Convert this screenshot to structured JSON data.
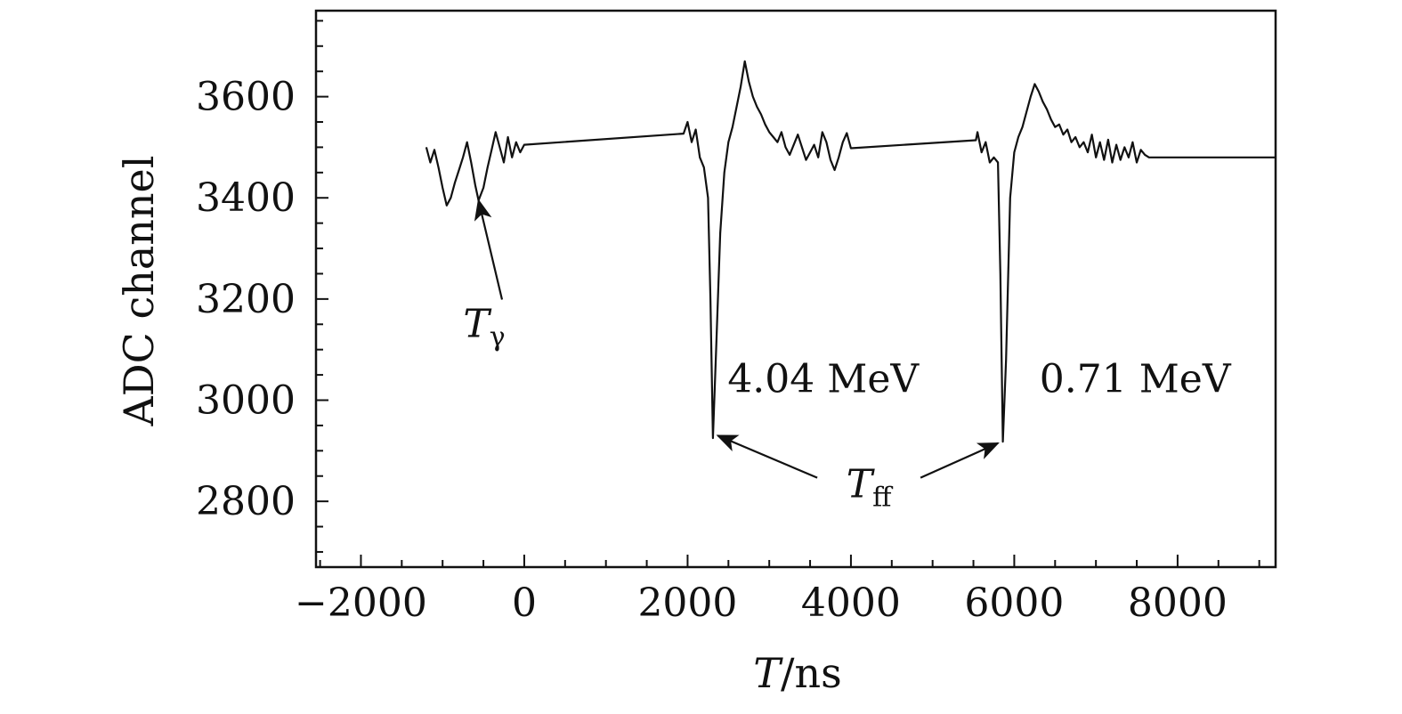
{
  "chart_data": {
    "type": "line",
    "xlabel_var": "T",
    "xlabel_unit": "/ns",
    "ylabel": "ADC channel",
    "xlim": [
      -2550,
      9200
    ],
    "ylim": [
      2670,
      3770
    ],
    "x_ticks": [
      -2000,
      0,
      2000,
      4000,
      6000,
      8000
    ],
    "x_tick_labels": [
      "−2000",
      "0",
      "2000",
      "4000",
      "6000",
      "8000"
    ],
    "x_minor_step": 500,
    "y_ticks": [
      2800,
      3000,
      3200,
      3400,
      3600
    ],
    "y_tick_labels": [
      "2800",
      "3000",
      "3200",
      "3400",
      "3600"
    ],
    "y_minor_step": 50,
    "series": [
      {
        "points": [
          [
            -1200,
            3500
          ],
          [
            -1150,
            3470
          ],
          [
            -1100,
            3495
          ],
          [
            -1050,
            3460
          ],
          [
            -1000,
            3420
          ],
          [
            -950,
            3385
          ],
          [
            -900,
            3400
          ],
          [
            -850,
            3430
          ],
          [
            -800,
            3455
          ],
          [
            -750,
            3480
          ],
          [
            -700,
            3510
          ],
          [
            -650,
            3470
          ],
          [
            -600,
            3425
          ],
          [
            -560,
            3395
          ],
          [
            -500,
            3420
          ],
          [
            -450,
            3460
          ],
          [
            -400,
            3495
          ],
          [
            -350,
            3530
          ],
          [
            -300,
            3500
          ],
          [
            -250,
            3470
          ],
          [
            -200,
            3520
          ],
          [
            -150,
            3480
          ],
          [
            -100,
            3510
          ],
          [
            -50,
            3490
          ],
          [
            0,
            3505
          ],
          [
            1950,
            3527
          ],
          [
            2000,
            3550
          ],
          [
            2050,
            3510
          ],
          [
            2100,
            3535
          ],
          [
            2150,
            3480
          ],
          [
            2200,
            3460
          ],
          [
            2250,
            3400
          ],
          [
            2280,
            3200
          ],
          [
            2310,
            2925
          ],
          [
            2350,
            3100
          ],
          [
            2400,
            3330
          ],
          [
            2450,
            3450
          ],
          [
            2500,
            3510
          ],
          [
            2550,
            3540
          ],
          [
            2600,
            3580
          ],
          [
            2650,
            3620
          ],
          [
            2700,
            3670
          ],
          [
            2750,
            3630
          ],
          [
            2800,
            3600
          ],
          [
            2850,
            3580
          ],
          [
            2900,
            3565
          ],
          [
            2950,
            3545
          ],
          [
            3000,
            3530
          ],
          [
            3050,
            3520
          ],
          [
            3100,
            3510
          ],
          [
            3150,
            3530
          ],
          [
            3200,
            3500
          ],
          [
            3250,
            3485
          ],
          [
            3300,
            3505
          ],
          [
            3350,
            3525
          ],
          [
            3400,
            3500
          ],
          [
            3450,
            3475
          ],
          [
            3500,
            3490
          ],
          [
            3550,
            3505
          ],
          [
            3600,
            3480
          ],
          [
            3650,
            3530
          ],
          [
            3700,
            3510
          ],
          [
            3750,
            3475
          ],
          [
            3800,
            3455
          ],
          [
            3850,
            3480
          ],
          [
            3900,
            3510
          ],
          [
            3950,
            3528
          ],
          [
            4000,
            3498
          ],
          [
            5530,
            3514
          ],
          [
            5550,
            3530
          ],
          [
            5600,
            3490
          ],
          [
            5650,
            3510
          ],
          [
            5700,
            3470
          ],
          [
            5750,
            3480
          ],
          [
            5800,
            3470
          ],
          [
            5830,
            3250
          ],
          [
            5860,
            2918
          ],
          [
            5900,
            3080
          ],
          [
            5950,
            3400
          ],
          [
            6000,
            3490
          ],
          [
            6050,
            3520
          ],
          [
            6100,
            3540
          ],
          [
            6150,
            3570
          ],
          [
            6200,
            3600
          ],
          [
            6250,
            3625
          ],
          [
            6300,
            3610
          ],
          [
            6350,
            3590
          ],
          [
            6400,
            3575
          ],
          [
            6450,
            3555
          ],
          [
            6500,
            3540
          ],
          [
            6550,
            3545
          ],
          [
            6600,
            3525
          ],
          [
            6650,
            3535
          ],
          [
            6700,
            3510
          ],
          [
            6750,
            3520
          ],
          [
            6800,
            3500
          ],
          [
            6850,
            3510
          ],
          [
            6900,
            3490
          ],
          [
            6950,
            3525
          ],
          [
            7000,
            3480
          ],
          [
            7050,
            3510
          ],
          [
            7100,
            3475
          ],
          [
            7150,
            3515
          ],
          [
            7200,
            3470
          ],
          [
            7250,
            3505
          ],
          [
            7300,
            3475
          ],
          [
            7350,
            3500
          ],
          [
            7400,
            3480
          ],
          [
            7450,
            3510
          ],
          [
            7500,
            3470
          ],
          [
            7550,
            3495
          ],
          [
            7600,
            3485
          ],
          [
            7650,
            3480
          ],
          [
            9200,
            3480
          ]
        ]
      }
    ],
    "annotations": [
      {
        "var": "T",
        "sub": "γ",
        "x": -490,
        "y": 3125,
        "arrow_to": [
          -560,
          3395
        ]
      },
      {
        "var": "T",
        "sub": "ff",
        "x": 4220,
        "y": 2808,
        "arrow_to_list": [
          [
            2370,
            2930
          ],
          [
            5800,
            2915
          ]
        ]
      },
      {
        "label": "4.04 MeV",
        "x": 3660,
        "y": 3016
      },
      {
        "label": "0.71 MeV",
        "x": 7480,
        "y": 3016
      }
    ],
    "legend": "none",
    "grid": false
  }
}
